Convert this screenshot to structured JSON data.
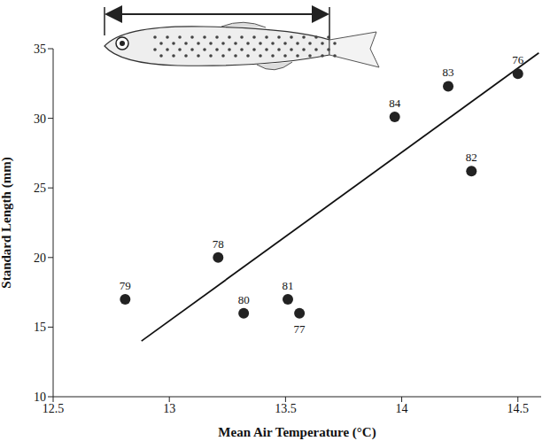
{
  "chart_data": {
    "type": "scatter",
    "x_label": "Mean Air Temperature (°C)",
    "y_label": "Standard Length (mm)",
    "x": [
      14.5,
      13.56,
      13.21,
      12.81,
      13.32,
      13.51,
      14.3,
      14.2,
      13.97
    ],
    "values": [
      33.2,
      16,
      20,
      17,
      16,
      17,
      26.2,
      32.3,
      30.1
    ],
    "labels": [
      "76",
      "77",
      "78",
      "79",
      "80",
      "81",
      "82",
      "83",
      "84"
    ],
    "color": "#222222",
    "marker": "circle",
    "xlim": [
      12.5,
      14.6
    ],
    "xticks": [
      12.5,
      13,
      13.5,
      14,
      14.5
    ],
    "ylim": [
      10,
      35
    ],
    "yticks": [
      10,
      15,
      20,
      25,
      30,
      35
    ],
    "grid": false,
    "trend_line": {
      "x": [
        12.88,
        14.59
      ],
      "y": [
        14,
        34.7
      ]
    }
  }
}
